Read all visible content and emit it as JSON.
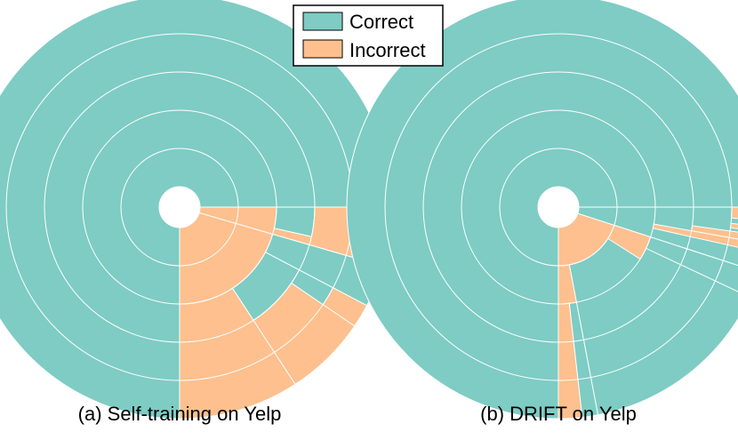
{
  "legend": {
    "placement": "top-center",
    "items": [
      {
        "label": "Correct",
        "color": "#7ECCC4"
      },
      {
        "label": "Incorrect",
        "color": "#FDC08E"
      }
    ]
  },
  "chart_data": [
    {
      "type": "sunburst",
      "caption": "(a) Self-training on Yelp",
      "rings": 5,
      "colors": {
        "correct": "#7ECCC4",
        "incorrect": "#FDC08E"
      },
      "wedges": [
        {
          "class": "correct",
          "start": 0.0,
          "end": 0.75,
          "r0": 0,
          "r1": 5
        },
        {
          "class": "incorrect",
          "start": 0.75,
          "end": 0.955,
          "r0": 0,
          "r1": 2
        },
        {
          "class": "incorrect",
          "start": 0.955,
          "end": 1.0,
          "r0": 0,
          "r1": 5
        },
        {
          "class": "incorrect",
          "start": 0.75,
          "end": 0.842,
          "r0": 2,
          "r1": 5
        },
        {
          "class": "correct",
          "start": 0.842,
          "end": 0.923,
          "r0": 2,
          "r1": 3
        },
        {
          "class": "incorrect",
          "start": 0.842,
          "end": 0.905,
          "r0": 3,
          "r1": 5
        },
        {
          "class": "correct",
          "start": 0.905,
          "end": 0.923,
          "r0": 3,
          "r1": 4
        },
        {
          "class": "incorrect",
          "start": 0.905,
          "end": 0.923,
          "r0": 4,
          "r1": 5
        },
        {
          "class": "correct",
          "start": 0.923,
          "end": 0.955,
          "r0": 2,
          "r1": 5
        },
        {
          "class": "incorrect",
          "start": 0.955,
          "end": 0.965,
          "r0": 2,
          "r1": 3
        },
        {
          "class": "correct",
          "start": 0.965,
          "end": 1.0,
          "r0": 2,
          "r1": 3
        }
      ]
    },
    {
      "type": "sunburst",
      "caption": "(b) DRIFT on Yelp",
      "rings": 5,
      "colors": {
        "correct": "#7ECCC4",
        "incorrect": "#FDC08E"
      },
      "wedges": [
        {
          "class": "correct",
          "start": 0.0,
          "end": 0.75,
          "r0": 0,
          "r1": 5
        },
        {
          "class": "incorrect",
          "start": 0.75,
          "end": 0.95,
          "r0": 0,
          "r1": 1
        },
        {
          "class": "correct",
          "start": 0.95,
          "end": 1.0,
          "r0": 0,
          "r1": 5
        },
        {
          "class": "incorrect",
          "start": 0.75,
          "end": 0.78,
          "r0": 1,
          "r1": 2
        },
        {
          "class": "incorrect",
          "start": 0.75,
          "end": 0.768,
          "r0": 2,
          "r1": 5
        },
        {
          "class": "correct",
          "start": 0.768,
          "end": 0.78,
          "r0": 2,
          "r1": 5
        },
        {
          "class": "correct",
          "start": 0.78,
          "end": 0.95,
          "r0": 1,
          "r1": 5
        },
        {
          "class": "incorrect",
          "start": 0.91,
          "end": 0.95,
          "r0": 1,
          "r1": 2
        },
        {
          "class": "correct",
          "start": 0.93,
          "end": 0.95,
          "r0": 2,
          "r1": 5
        },
        {
          "class": "incorrect",
          "start": 0.965,
          "end": 0.972,
          "r0": 2,
          "r1": 5
        },
        {
          "class": "incorrect",
          "start": 0.972,
          "end": 0.978,
          "r0": 3,
          "r1": 5
        },
        {
          "class": "incorrect",
          "start": 0.981,
          "end": 0.985,
          "r0": 4,
          "r1": 5
        },
        {
          "class": "incorrect",
          "start": 0.99,
          "end": 1.0,
          "r0": 4,
          "r1": 5
        }
      ]
    }
  ]
}
